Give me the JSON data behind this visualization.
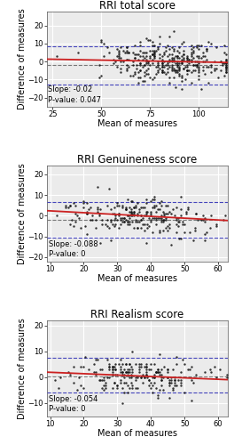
{
  "plots": [
    {
      "title": "RRI total score",
      "xlim": [
        22,
        115
      ],
      "ylim": [
        -25,
        28
      ],
      "xticks": [
        25,
        50,
        75,
        100
      ],
      "yticks": [
        -20,
        -10,
        0,
        10,
        20
      ],
      "xlabel": "Mean of measures",
      "ylabel": "Difference of measures",
      "slope": -0.02,
      "intercept": 1.8,
      "slope_label": "Slope: -0.02",
      "pval_label": "P-value: 0.047",
      "loa_upper": 8.5,
      "loa_lower": -12.5,
      "mean_line": -2.0,
      "n_points": 350,
      "x_center": 85,
      "x_std": 18,
      "y_std": 5.5,
      "x_step": 1.0,
      "y_step": 1.0,
      "seed": 42
    },
    {
      "title": "RRI Genuineness score",
      "xlim": [
        9,
        63
      ],
      "ylim": [
        -22,
        24
      ],
      "xticks": [
        10,
        20,
        30,
        40,
        50,
        60
      ],
      "yticks": [
        -20,
        -10,
        0,
        10,
        20
      ],
      "xlabel": "Mean of measures",
      "ylabel": "Difference of measures",
      "slope": -0.088,
      "intercept": 3.2,
      "slope_label": "Slope: -0.088",
      "pval_label": "P-value: 0",
      "loa_upper": 6.5,
      "loa_lower": -10.5,
      "mean_line": -2.0,
      "n_points": 250,
      "x_center": 37,
      "x_std": 11,
      "y_std": 4.5,
      "x_step": 0.5,
      "y_step": 1.0,
      "seed": 7
    },
    {
      "title": "RRI Realism score",
      "xlim": [
        9,
        63
      ],
      "ylim": [
        -15,
        22
      ],
      "xticks": [
        10,
        20,
        30,
        40,
        50,
        60
      ],
      "yticks": [
        -10,
        0,
        10,
        20
      ],
      "xlabel": "Mean of measures",
      "ylabel": "Difference of measures",
      "slope": -0.054,
      "intercept": 2.5,
      "slope_label": "Slope: -0.054",
      "pval_label": "P-value: 0",
      "loa_upper": 7.5,
      "loa_lower": -6.0,
      "mean_line": 0.2,
      "n_points": 220,
      "x_center": 37,
      "x_std": 11,
      "y_std": 3.5,
      "x_step": 0.5,
      "y_step": 1.0,
      "seed": 13
    }
  ],
  "dot_color": "#111111",
  "dot_size": 3,
  "line_color": "#cc2222",
  "loa_color": "#4444bb",
  "mean_color": "#777777",
  "bg_color": "#ebebeb",
  "grid_color": "#ffffff",
  "annotation_fontsize": 6.0,
  "title_fontsize": 8.5,
  "label_fontsize": 7.0,
  "tick_fontsize": 6.0
}
